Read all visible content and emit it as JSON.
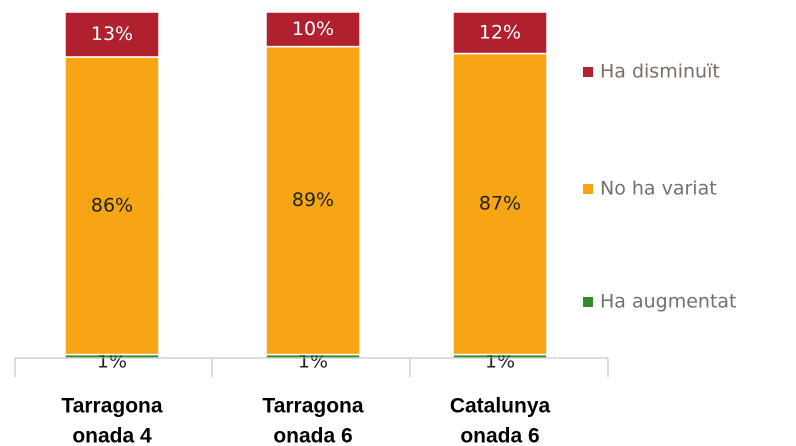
{
  "chart_data": {
    "type": "stacked_bar",
    "categories": [
      [
        "Tarragona",
        "onada 4"
      ],
      [
        "Tarragona",
        "onada 6"
      ],
      [
        "Catalunya",
        "onada 6"
      ]
    ],
    "series": [
      {
        "name": "Ha augmentat",
        "color": "#2e8b2e",
        "values": [
          1,
          1,
          1
        ],
        "value_labels": [
          "1%",
          "1%",
          "1%"
        ]
      },
      {
        "name": "No ha variat",
        "color": "#f7a514",
        "values": [
          86,
          89,
          87
        ],
        "value_labels": [
          "86%",
          "89%",
          "87%"
        ]
      },
      {
        "name": "Ha disminuït",
        "color": "#b0202e",
        "values": [
          13,
          10,
          12
        ],
        "value_labels": [
          "13%",
          "10%",
          "12%"
        ]
      }
    ],
    "ylim": [
      0,
      100
    ]
  }
}
